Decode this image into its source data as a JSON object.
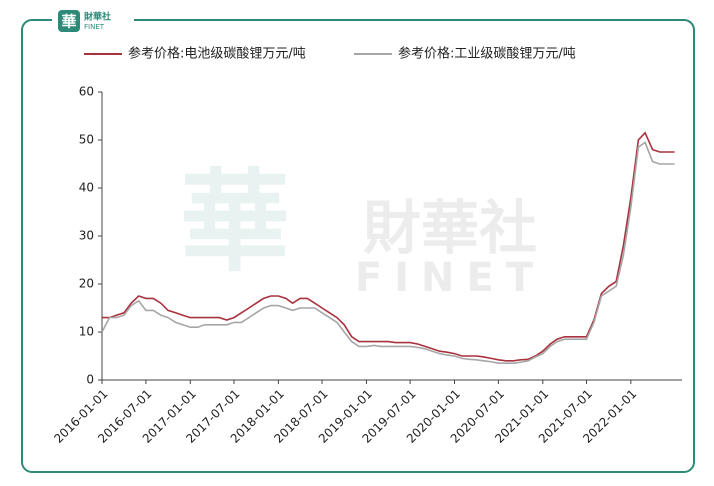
{
  "brand": {
    "logo_char": "華",
    "name": "財華社",
    "name_en": "FINET"
  },
  "chart_data": {
    "type": "line",
    "x": [
      "2016-01-01",
      "2016-02-01",
      "2016-03-01",
      "2016-04-01",
      "2016-05-01",
      "2016-06-01",
      "2016-07-01",
      "2016-08-01",
      "2016-09-01",
      "2016-10-01",
      "2016-11-01",
      "2016-12-01",
      "2017-01-01",
      "2017-02-01",
      "2017-03-01",
      "2017-04-01",
      "2017-05-01",
      "2017-06-01",
      "2017-07-01",
      "2017-08-01",
      "2017-09-01",
      "2017-10-01",
      "2017-11-01",
      "2017-12-01",
      "2018-01-01",
      "2018-02-01",
      "2018-03-01",
      "2018-04-01",
      "2018-05-01",
      "2018-06-01",
      "2018-07-01",
      "2018-08-01",
      "2018-09-01",
      "2018-10-01",
      "2018-11-01",
      "2018-12-01",
      "2019-01-01",
      "2019-02-01",
      "2019-03-01",
      "2019-04-01",
      "2019-05-01",
      "2019-06-01",
      "2019-07-01",
      "2019-08-01",
      "2019-09-01",
      "2019-10-01",
      "2019-11-01",
      "2019-12-01",
      "2020-01-01",
      "2020-02-01",
      "2020-03-01",
      "2020-04-01",
      "2020-05-01",
      "2020-06-01",
      "2020-07-01",
      "2020-08-01",
      "2020-09-01",
      "2020-10-01",
      "2020-11-01",
      "2020-12-01",
      "2021-01-01",
      "2021-02-01",
      "2021-03-01",
      "2021-04-01",
      "2021-05-01",
      "2021-06-01",
      "2021-07-01",
      "2021-08-01",
      "2021-09-01",
      "2021-10-01",
      "2021-11-01",
      "2021-12-01",
      "2022-01-01",
      "2022-02-01",
      "2022-03-01",
      "2022-04-01",
      "2022-05-01",
      "2022-06-01",
      "2022-07-01"
    ],
    "series": [
      {
        "name": "参考价格:电池级碳酸锂万元/吨",
        "color": "#a8323e",
        "values": [
          13,
          13,
          13.5,
          14,
          16,
          17.5,
          17,
          17,
          16,
          14.5,
          14,
          13.5,
          13,
          13,
          13,
          13,
          13,
          12.5,
          13,
          14,
          15,
          16,
          17,
          17.5,
          17.5,
          17,
          16,
          17,
          17,
          16,
          15,
          14,
          13,
          11.5,
          9,
          8,
          8,
          8,
          8,
          8,
          7.8,
          7.8,
          7.8,
          7.5,
          7,
          6.5,
          6,
          5.8,
          5.5,
          5,
          5,
          5,
          4.8,
          4.5,
          4.2,
          4,
          4,
          4.2,
          4.3,
          5,
          6,
          7.5,
          8.5,
          9,
          9,
          9,
          9,
          12.5,
          18,
          19.5,
          20.5,
          28,
          38,
          50,
          51.5,
          48,
          47.5,
          47.5,
          47.5
        ]
      },
      {
        "name": "参考价格:工业级碳酸锂万元/吨",
        "color": "#a6a6a6",
        "values": [
          10,
          13,
          13,
          13.5,
          15.5,
          16.5,
          14.5,
          14.5,
          13.5,
          13,
          12,
          11.5,
          11,
          11,
          11.5,
          11.5,
          11.5,
          11.5,
          12,
          12,
          13,
          14,
          15,
          15.5,
          15.5,
          15,
          14.5,
          15,
          15,
          15,
          14,
          13,
          12,
          10,
          8,
          7,
          7,
          7.2,
          7,
          7,
          7,
          7,
          7,
          6.8,
          6.5,
          6,
          5.5,
          5.2,
          5,
          4.5,
          4.3,
          4.2,
          4,
          3.8,
          3.5,
          3.5,
          3.5,
          3.7,
          4,
          4.8,
          5.5,
          7,
          8,
          8.5,
          8.5,
          8.5,
          8.5,
          12,
          17.5,
          18.5,
          19.5,
          26,
          36,
          48.5,
          49.5,
          45.5,
          45,
          45,
          45
        ]
      }
    ],
    "xlim": [
      "2016-01-01",
      "2022-08-01"
    ],
    "xticks": [
      "2016-01-01",
      "2016-07-01",
      "2017-01-01",
      "2017-07-01",
      "2018-01-01",
      "2018-07-01",
      "2019-01-01",
      "2019-07-01",
      "2020-01-01",
      "2020-07-01",
      "2021-01-01",
      "2021-07-01",
      "2022-01-01"
    ],
    "ylim": [
      0,
      60
    ],
    "yticks": [
      0,
      10,
      20,
      30,
      40,
      50,
      60
    ],
    "grid": false,
    "legend": "top"
  }
}
